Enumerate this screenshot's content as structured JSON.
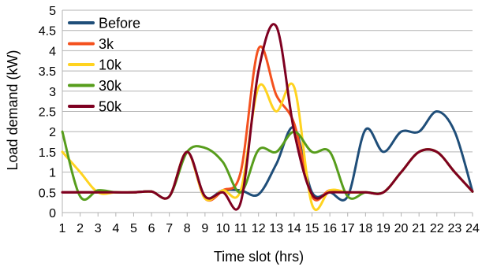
{
  "chart_data": {
    "type": "line",
    "xlabel": "Time slot (hrs)",
    "ylabel": "Load demand (kW)",
    "ylim": [
      0,
      5
    ],
    "yticks": [
      "0",
      "0.5",
      "1",
      "1.5",
      "2",
      "2.5",
      "3",
      "3.5",
      "4",
      "4.5",
      "5"
    ],
    "xticks": [
      "1",
      "2",
      "3",
      "4",
      "5",
      "6",
      "7",
      "8",
      "9",
      "10",
      "11",
      "12",
      "13",
      "14",
      "15",
      "16",
      "17",
      "18",
      "19",
      "20",
      "21",
      "22",
      "23",
      "24"
    ],
    "x": [
      1,
      2,
      3,
      4,
      5,
      6,
      7,
      8,
      9,
      10,
      11,
      12,
      13,
      14,
      15,
      16,
      17,
      18,
      19,
      20,
      21,
      22,
      23,
      24
    ],
    "grid": "horizontal",
    "legend_position": "top-left",
    "series": [
      {
        "name": "Before",
        "color": "#1f4e79",
        "values": [
          0.5,
          0.5,
          0.5,
          0.5,
          0.5,
          0.52,
          0.4,
          1.5,
          0.4,
          0.55,
          0.55,
          0.45,
          1.2,
          2.1,
          0.5,
          0.5,
          0.4,
          2.05,
          1.5,
          2.0,
          2.0,
          2.5,
          2.0,
          0.52
        ]
      },
      {
        "name": "3k",
        "color": "#f4511e",
        "values": [
          0.5,
          0.5,
          0.5,
          0.5,
          0.5,
          0.52,
          0.4,
          1.5,
          0.35,
          0.55,
          1.0,
          4.05,
          2.9,
          2.2,
          0.4,
          0.55,
          0.5,
          0.5,
          0.5,
          1.0,
          1.5,
          1.5,
          1.0,
          0.52
        ]
      },
      {
        "name": "10k",
        "color": "#ffd320",
        "values": [
          1.5,
          1.0,
          0.5,
          0.5,
          0.5,
          0.52,
          0.4,
          1.5,
          0.35,
          0.55,
          0.55,
          3.1,
          2.5,
          3.1,
          0.2,
          0.55,
          0.5,
          0.5,
          0.5,
          1.0,
          1.5,
          1.5,
          1.0,
          0.52
        ]
      },
      {
        "name": "30k",
        "color": "#579d1c",
        "values": [
          2.0,
          0.4,
          0.55,
          0.5,
          0.5,
          0.52,
          0.4,
          1.5,
          1.6,
          1.25,
          0.5,
          1.55,
          1.5,
          2.0,
          1.5,
          1.5,
          0.4,
          0.5,
          0.5,
          1.0,
          1.5,
          1.5,
          1.0,
          0.52
        ]
      },
      {
        "name": "50k",
        "color": "#7e0021",
        "values": [
          0.5,
          0.5,
          0.5,
          0.5,
          0.5,
          0.52,
          0.4,
          1.5,
          0.4,
          0.5,
          0.25,
          3.5,
          4.6,
          2.0,
          0.45,
          0.5,
          0.5,
          0.5,
          0.5,
          1.0,
          1.5,
          1.5,
          1.0,
          0.52
        ]
      }
    ]
  }
}
